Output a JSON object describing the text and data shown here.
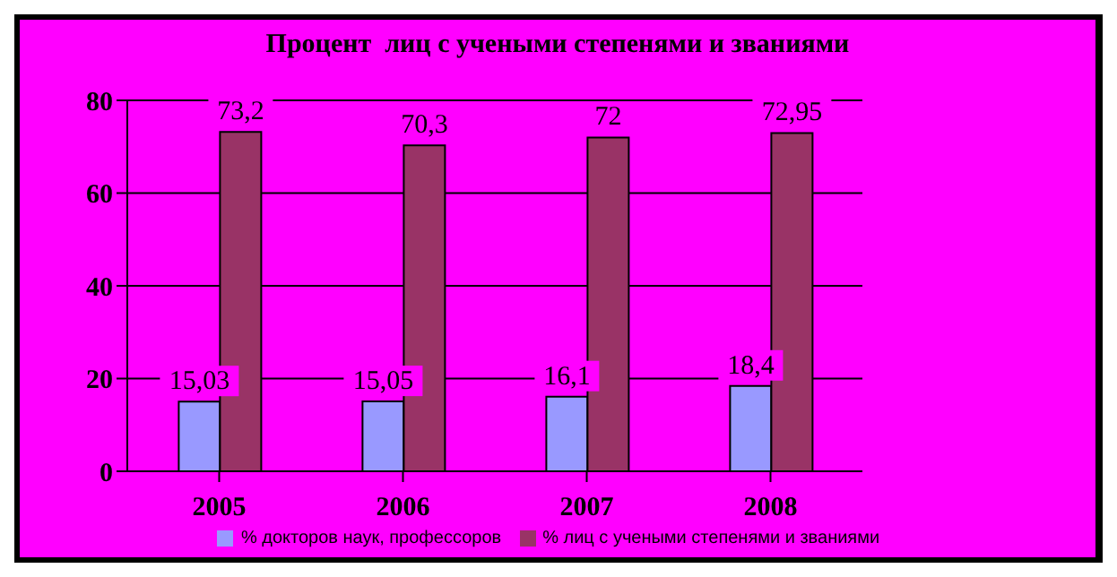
{
  "chart_data": {
    "type": "bar",
    "title": "Процент  лиц с учеными степенями и званиями",
    "categories": [
      "2005",
      "2006",
      "2007",
      "2008"
    ],
    "series": [
      {
        "name": "% докторов наук, профессоров",
        "color": "#9999ff",
        "values": [
          15.03,
          15.05,
          16.1,
          18.4
        ],
        "value_labels": [
          "15,03",
          "15,05",
          "16,1",
          "18,4"
        ]
      },
      {
        "name": "% лиц с учеными степенями и званиями",
        "color": "#993366",
        "values": [
          73.2,
          70.3,
          72,
          72.95
        ],
        "value_labels": [
          "73,2",
          "70,3",
          "72",
          "72,95"
        ]
      }
    ],
    "ylim": [
      0,
      80
    ],
    "yticks": [
      0,
      20,
      40,
      60,
      80
    ],
    "grid": "y",
    "legend": "bottom"
  }
}
